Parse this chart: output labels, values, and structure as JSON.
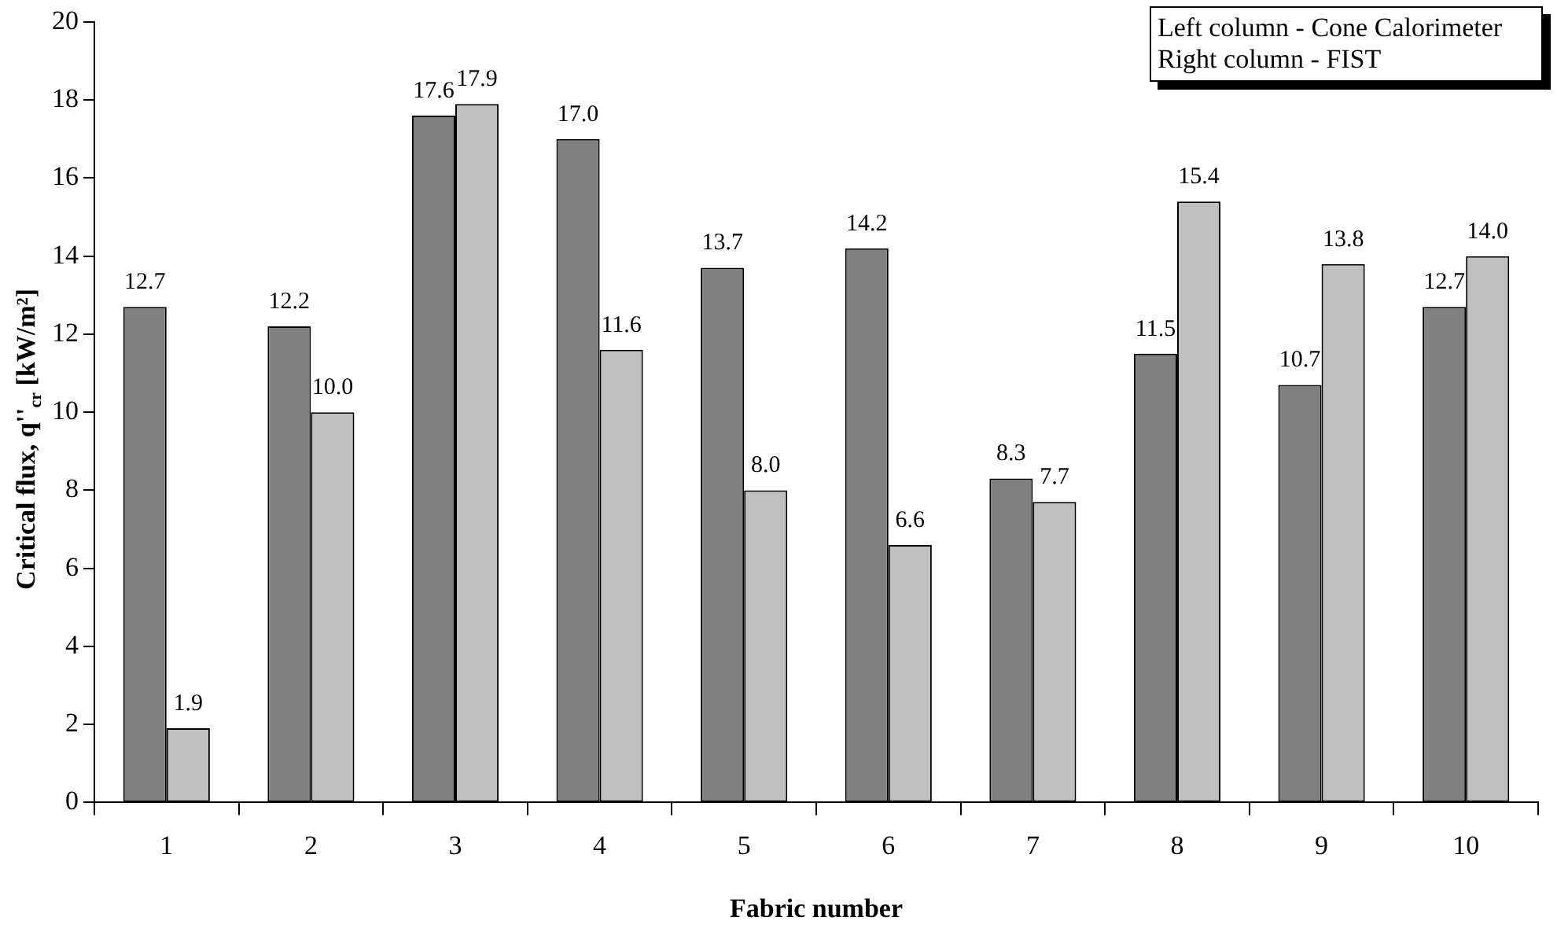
{
  "chart_data": {
    "type": "bar",
    "xlabel": "Fabric number",
    "ylabel": "Critical flux, q''$_{cr}$ [kW/m²]",
    "categories": [
      "1",
      "2",
      "3",
      "4",
      "5",
      "6",
      "7",
      "8",
      "9",
      "10"
    ],
    "series": [
      {
        "color": "#808080",
        "values": [
          12.7,
          12.2,
          17.6,
          17.0,
          13.7,
          14.2,
          8.3,
          11.5,
          10.7,
          12.7
        ],
        "value_labels": [
          "12.7",
          "12.2",
          "17.6",
          "17.0",
          "13.7",
          "14.2",
          "8.3",
          "11.5",
          "10.7",
          "12.7"
        ]
      },
      {
        "color": "#c0c0c0",
        "values": [
          1.9,
          10.0,
          17.9,
          11.6,
          8.0,
          6.6,
          7.7,
          15.4,
          13.8,
          14.0
        ],
        "value_labels": [
          "1.9",
          "10.0",
          "17.9",
          "11.6",
          "8.0",
          "6.6",
          "7.7",
          "15.4",
          "13.8",
          "14.0"
        ]
      }
    ],
    "ylim": [
      0,
      20
    ],
    "yticks": [
      0,
      2,
      4,
      6,
      8,
      10,
      12,
      14,
      16,
      18,
      20
    ],
    "grid": false,
    "legend": false,
    "annotations": [
      "Left column - Cone Calorimeter",
      "Right column - FIST"
    ]
  }
}
